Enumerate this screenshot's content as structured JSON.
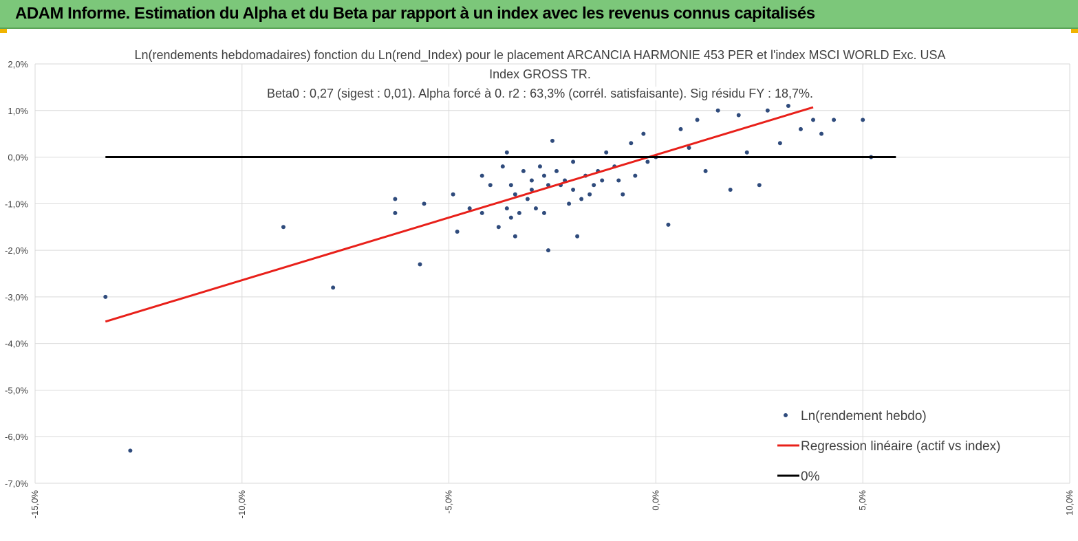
{
  "header": {
    "title": "ADAM Informe. Estimation du Alpha et du Beta par rapport à un index avec les revenus connus capitalisés",
    "accent_color": "#7cc77a",
    "corner_color": "#f0b400"
  },
  "chart_data": {
    "type": "scatter",
    "title_lines": [
      "Ln(rendements hebdomadaires) fonction du Ln(rend_Index) pour le placement ARCANCIA HARMONIE 453 PER et l'index MSCI WORLD Exc. USA",
      "Index GROSS TR.",
      "Beta0 : 0,27  (sigest : 0,01). Alpha forcé à 0. r2 : 63,3% (corrél. satisfaisante). Sig résidu FY : 18,7%."
    ],
    "xlim": [
      -15,
      10
    ],
    "ylim": [
      -7,
      2
    ],
    "x_ticks": [
      -15,
      -10,
      -5,
      0,
      5,
      10
    ],
    "x_tick_labels": [
      "-15,0%",
      "-10,0%",
      "-5,0%",
      "0,0%",
      "5,0%",
      "10,0%"
    ],
    "y_ticks": [
      2,
      1,
      0,
      -1,
      -2,
      -3,
      -4,
      -5,
      -6,
      -7
    ],
    "y_tick_labels": [
      "2,0%",
      "1,0%",
      "0,0%",
      "-1,0%",
      "-2,0%",
      "-3,0%",
      "-4,0%",
      "-5,0%",
      "-6,0%",
      "-7,0%"
    ],
    "grid": true,
    "legend_position": "bottom-right",
    "series": [
      {
        "name": "Ln(rendement hebdo)",
        "kind": "scatter",
        "color": "#2f4b7c",
        "x": [
          -13.3,
          -12.7,
          -9.0,
          -7.8,
          -6.3,
          -6.3,
          -5.7,
          -5.6,
          -4.9,
          -4.8,
          -4.5,
          -4.2,
          -4.2,
          -4.0,
          -3.8,
          -3.7,
          -3.6,
          -3.6,
          -3.5,
          -3.5,
          -3.4,
          -3.4,
          -3.3,
          -3.2,
          -3.1,
          -3.0,
          -3.0,
          -2.9,
          -2.8,
          -2.7,
          -2.7,
          -2.6,
          -2.6,
          -2.5,
          -2.4,
          -2.3,
          -2.2,
          -2.1,
          -2.0,
          -2.0,
          -1.9,
          -1.8,
          -1.7,
          -1.6,
          -1.5,
          -1.4,
          -1.3,
          -1.2,
          -1.0,
          -0.9,
          -0.8,
          -0.6,
          -0.5,
          -0.3,
          -0.2,
          0.0,
          0.3,
          0.6,
          0.8,
          1.0,
          1.2,
          1.5,
          1.8,
          2.0,
          2.2,
          2.5,
          2.7,
          3.0,
          3.2,
          3.5,
          3.8,
          4.0,
          4.3,
          5.0,
          5.2
        ],
        "y": [
          -3.0,
          -6.3,
          -1.5,
          -2.8,
          -0.9,
          -1.2,
          -2.3,
          -1.0,
          -0.8,
          -1.6,
          -1.1,
          -0.4,
          -1.2,
          -0.6,
          -1.5,
          -0.2,
          0.1,
          -1.1,
          -1.3,
          -0.6,
          -0.8,
          -1.7,
          -1.2,
          -0.3,
          -0.9,
          -0.5,
          -0.7,
          -1.1,
          -0.2,
          -0.4,
          -1.2,
          -0.6,
          -2.0,
          0.35,
          -0.3,
          -0.6,
          -0.5,
          -1.0,
          -0.1,
          -0.7,
          -1.7,
          -0.9,
          -0.4,
          -0.8,
          -0.6,
          -0.3,
          -0.5,
          0.1,
          -0.2,
          -0.5,
          -0.8,
          0.3,
          -0.4,
          0.5,
          -0.1,
          0.0,
          -1.45,
          0.6,
          0.2,
          0.8,
          -0.3,
          1.0,
          -0.7,
          0.9,
          0.1,
          -0.6,
          1.0,
          0.3,
          1.1,
          0.6,
          0.8,
          0.5,
          0.8,
          0.8,
          0.0
        ]
      },
      {
        "name": "Regression linéaire (actif vs index)",
        "kind": "line",
        "color": "#e8201a",
        "x": [
          -13.3,
          3.8
        ],
        "y": [
          -3.53,
          1.07
        ]
      },
      {
        "name": "0%",
        "kind": "line",
        "color": "#000000",
        "x": [
          -13.3,
          5.8
        ],
        "y": [
          0,
          0
        ]
      }
    ]
  }
}
